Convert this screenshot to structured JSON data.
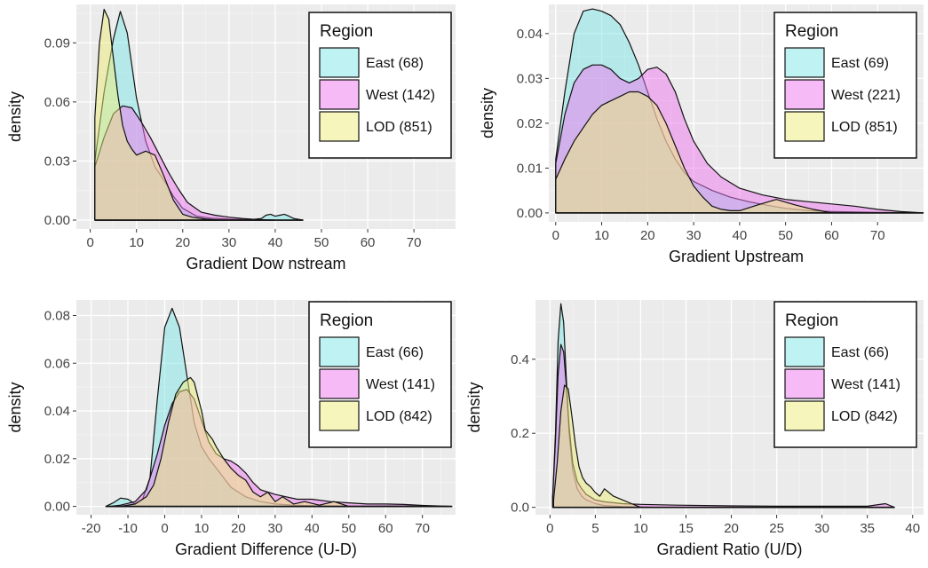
{
  "chart_data": [
    {
      "type": "area",
      "subtype": "density",
      "xlabel": "Gradient Dow nstream",
      "ylabel": "density",
      "xlim": [
        -3,
        79
      ],
      "ylim": [
        -0.0045,
        0.1095
      ],
      "xticks": [
        0,
        10,
        20,
        30,
        40,
        50,
        60,
        70
      ],
      "yticks": [
        0.0,
        0.03,
        0.06,
        0.09
      ],
      "ytick_labels": [
        "0.00",
        "0.03",
        "0.06",
        "0.09"
      ],
      "grid": true,
      "legend": {
        "title": "Region",
        "position": "top-right"
      },
      "series": [
        {
          "name": "East (68)",
          "color": "#7fe6e6",
          "x": [
            1,
            3,
            5,
            6.5,
            8,
            10,
            12,
            14,
            16,
            18,
            20,
            23,
            26,
            30,
            35,
            37,
            38,
            39,
            40,
            41,
            42,
            43,
            44,
            46
          ],
          "y": [
            0.03,
            0.065,
            0.092,
            0.106,
            0.095,
            0.062,
            0.04,
            0.027,
            0.02,
            0.012,
            0.006,
            0.002,
            0.001,
            0.0005,
            0.0003,
            0.0008,
            0.0025,
            0.003,
            0.002,
            0.0025,
            0.003,
            0.002,
            0.0008,
            0
          ]
        },
        {
          "name": "West (142)",
          "color": "#ee77ee",
          "x": [
            1,
            3,
            5,
            7,
            9,
            11,
            13,
            15,
            17,
            19,
            21,
            24,
            27,
            30,
            33,
            36,
            40
          ],
          "y": [
            0.027,
            0.042,
            0.054,
            0.058,
            0.057,
            0.05,
            0.042,
            0.033,
            0.024,
            0.016,
            0.009,
            0.004,
            0.0025,
            0.0015,
            0.0008,
            0.0003,
            0
          ]
        },
        {
          "name": "LOD (851)",
          "color": "#eeee7a",
          "x": [
            1,
            2,
            3,
            4,
            5,
            6,
            7,
            8,
            9,
            10,
            12,
            14,
            16,
            18,
            20,
            22,
            25,
            28
          ],
          "y": [
            0.052,
            0.09,
            0.107,
            0.102,
            0.082,
            0.063,
            0.048,
            0.04,
            0.036,
            0.033,
            0.035,
            0.033,
            0.022,
            0.01,
            0.003,
            0.0015,
            0.0005,
            0
          ]
        }
      ]
    },
    {
      "type": "area",
      "subtype": "density",
      "xlabel": "Gradient Upstream",
      "ylabel": "density",
      "xlim": [
        -1.5,
        80
      ],
      "ylim": [
        -0.002,
        0.0465
      ],
      "xticks": [
        0,
        10,
        20,
        30,
        40,
        50,
        60,
        70
      ],
      "yticks": [
        0.0,
        0.01,
        0.02,
        0.03,
        0.04
      ],
      "ytick_labels": [
        "0.00",
        "0.01",
        "0.02",
        "0.03",
        "0.04"
      ],
      "grid": true,
      "legend": {
        "title": "Region",
        "position": "top-right"
      },
      "series": [
        {
          "name": "East (69)",
          "color": "#7fe6e6",
          "x": [
            0,
            2,
            4,
            6,
            8,
            10,
            12,
            14,
            16,
            18,
            20,
            22,
            24,
            26,
            28,
            30,
            34,
            38,
            42,
            46,
            50,
            55,
            60,
            65,
            70,
            75,
            80
          ],
          "y": [
            0.012,
            0.027,
            0.04,
            0.045,
            0.0455,
            0.045,
            0.044,
            0.042,
            0.038,
            0.033,
            0.027,
            0.021,
            0.016,
            0.012,
            0.009,
            0.007,
            0.005,
            0.0035,
            0.0025,
            0.0017,
            0.001,
            0.0005,
            0.0003,
            0.0002,
            0.0001,
            5e-05,
            0
          ]
        },
        {
          "name": "West (221)",
          "color": "#ee77ee",
          "x": [
            0,
            2,
            4,
            6,
            8,
            10,
            12,
            14,
            16,
            18,
            20,
            22,
            24,
            26,
            28,
            30,
            33,
            36,
            40,
            45,
            50,
            55,
            60,
            65,
            70,
            75,
            80
          ],
          "y": [
            0.011,
            0.022,
            0.029,
            0.032,
            0.033,
            0.033,
            0.032,
            0.03,
            0.029,
            0.03,
            0.032,
            0.0325,
            0.031,
            0.027,
            0.021,
            0.016,
            0.011,
            0.008,
            0.0055,
            0.004,
            0.003,
            0.0025,
            0.002,
            0.0015,
            0.0008,
            0.0003,
            0
          ]
        },
        {
          "name": "LOD (851)",
          "color": "#eeee7a",
          "x": [
            0,
            2,
            4,
            6,
            8,
            10,
            12,
            14,
            16,
            18,
            20,
            22,
            24,
            26,
            28,
            30,
            32,
            34,
            36,
            38,
            40,
            44,
            48,
            52,
            56,
            60
          ],
          "y": [
            0.0075,
            0.012,
            0.016,
            0.019,
            0.022,
            0.024,
            0.025,
            0.026,
            0.027,
            0.027,
            0.026,
            0.024,
            0.02,
            0.015,
            0.01,
            0.006,
            0.0035,
            0.0015,
            0.0008,
            0.0005,
            0.0005,
            0.0018,
            0.003,
            0.0018,
            0.0008,
            0
          ]
        }
      ]
    },
    {
      "type": "area",
      "subtype": "density",
      "xlabel": "Gradient Difference (U-D)",
      "ylabel": "density",
      "xlim": [
        -24,
        79
      ],
      "ylim": [
        -0.0035,
        0.0865
      ],
      "xticks": [
        -20,
        -10,
        0,
        10,
        20,
        30,
        40,
        50,
        60,
        70
      ],
      "yticks": [
        0.0,
        0.02,
        0.04,
        0.06,
        0.08
      ],
      "ytick_labels": [
        "0.00",
        "0.02",
        "0.04",
        "0.06",
        "0.08"
      ],
      "grid": true,
      "legend": {
        "title": "Region",
        "position": "top-right"
      },
      "series": [
        {
          "name": "East (66)",
          "color": "#7fe6e6",
          "x": [
            -16,
            -14,
            -12,
            -10,
            -8,
            -6,
            -4,
            -2,
            0,
            2,
            4,
            6,
            8,
            10,
            12,
            15,
            18,
            22,
            26,
            30,
            35,
            40,
            45,
            50,
            55,
            60,
            65,
            70,
            78
          ],
          "y": [
            0,
            0.0015,
            0.0035,
            0.003,
            0.001,
            0.003,
            0.012,
            0.045,
            0.075,
            0.083,
            0.075,
            0.055,
            0.035,
            0.025,
            0.02,
            0.014,
            0.008,
            0.004,
            0.002,
            0.001,
            0.0005,
            0.0003,
            0.0002,
            0.0001,
            0.0001,
            0.0002,
            0.0002,
            0,
            0
          ]
        },
        {
          "name": "West (141)",
          "color": "#ee77ee",
          "x": [
            -15,
            -12,
            -8,
            -5,
            -2,
            0,
            2,
            4,
            6,
            8,
            10,
            12,
            14,
            16,
            18,
            20,
            22,
            24,
            26,
            28,
            30,
            33,
            36,
            40,
            45,
            50,
            55,
            60,
            65,
            70,
            78
          ],
          "y": [
            0,
            0.0005,
            0.002,
            0.007,
            0.022,
            0.034,
            0.043,
            0.048,
            0.049,
            0.045,
            0.036,
            0.027,
            0.022,
            0.02,
            0.019,
            0.017,
            0.014,
            0.01,
            0.007,
            0.006,
            0.005,
            0.004,
            0.003,
            0.003,
            0.002,
            0.0015,
            0.001,
            0.001,
            0.0008,
            0.0004,
            0
          ]
        },
        {
          "name": "LOD (842)",
          "color": "#eeee7a",
          "x": [
            -12,
            -8,
            -5,
            -3,
            -1,
            1,
            3,
            5,
            7,
            8,
            9,
            10,
            11,
            12,
            13,
            14,
            16,
            18,
            20,
            22,
            24,
            26,
            28,
            30,
            32,
            35,
            38,
            42,
            46,
            50
          ],
          "y": [
            0,
            0.001,
            0.004,
            0.009,
            0.02,
            0.035,
            0.047,
            0.052,
            0.054,
            0.052,
            0.046,
            0.04,
            0.032,
            0.03,
            0.028,
            0.025,
            0.02,
            0.016,
            0.013,
            0.011,
            0.006,
            0.004,
            0.006,
            0.002,
            0.004,
            0.001,
            0.002,
            0.0005,
            0.002,
            0
          ]
        }
      ]
    },
    {
      "type": "area",
      "subtype": "density",
      "xlabel": "Gradient Ratio (U/D)",
      "ylabel": "density",
      "xlim": [
        -1.6,
        41.2
      ],
      "ylim": [
        -0.02,
        0.56
      ],
      "xticks": [
        0,
        5,
        10,
        15,
        20,
        25,
        30,
        35,
        40
      ],
      "yticks": [
        0.0,
        0.2,
        0.4
      ],
      "ytick_labels": [
        "0.0",
        "0.2",
        "0.4"
      ],
      "grid": true,
      "legend": {
        "title": "Region",
        "position": "top-right"
      },
      "series": [
        {
          "name": "East (66)",
          "color": "#7fe6e6",
          "x": [
            0.3,
            0.6,
            0.9,
            1.2,
            1.5,
            1.8,
            2.1,
            2.5,
            3,
            3.5,
            4,
            5,
            6,
            8,
            10,
            12
          ],
          "y": [
            0.03,
            0.2,
            0.45,
            0.55,
            0.5,
            0.35,
            0.2,
            0.1,
            0.05,
            0.03,
            0.02,
            0.01,
            0.005,
            0.002,
            0.001,
            0
          ]
        },
        {
          "name": "West (141)",
          "color": "#ee77ee",
          "x": [
            0.3,
            0.6,
            0.9,
            1.2,
            1.5,
            1.8,
            2.1,
            2.5,
            3,
            3.5,
            4,
            5,
            6,
            8,
            10,
            14,
            20,
            25,
            30,
            35,
            37,
            38
          ],
          "y": [
            0.03,
            0.18,
            0.36,
            0.44,
            0.42,
            0.33,
            0.22,
            0.12,
            0.07,
            0.05,
            0.035,
            0.02,
            0.015,
            0.01,
            0.008,
            0.006,
            0.004,
            0.003,
            0.003,
            0.003,
            0.01,
            0
          ]
        },
        {
          "name": "LOD (842)",
          "color": "#eeee7a",
          "x": [
            0.4,
            0.8,
            1.2,
            1.6,
            2,
            2.4,
            2.8,
            3.2,
            3.6,
            4,
            4.5,
            5,
            5.5,
            6,
            7,
            8,
            9,
            10
          ],
          "y": [
            0.02,
            0.12,
            0.26,
            0.33,
            0.32,
            0.25,
            0.17,
            0.11,
            0.08,
            0.065,
            0.055,
            0.04,
            0.03,
            0.05,
            0.03,
            0.02,
            0.01,
            0
          ]
        }
      ]
    }
  ]
}
